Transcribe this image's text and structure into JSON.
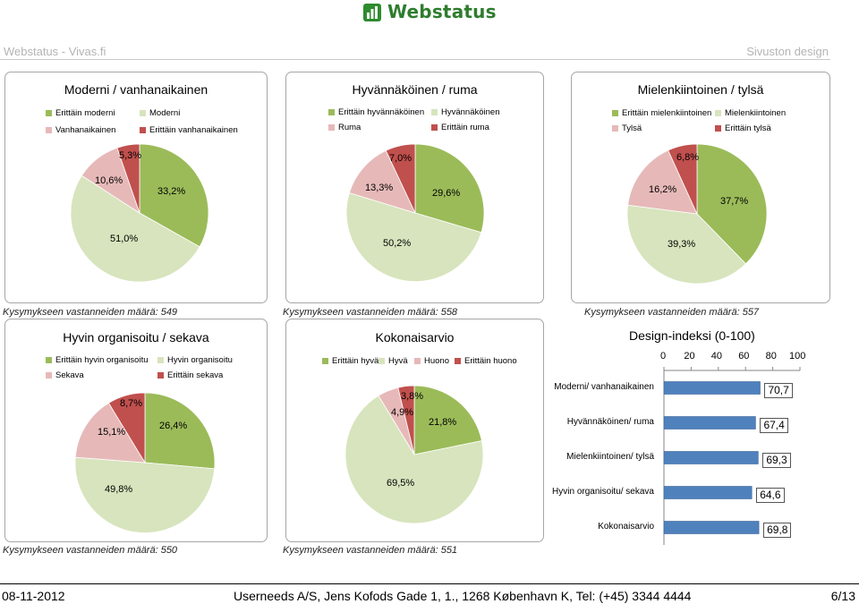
{
  "header": {
    "logo_text": "Webstatus",
    "left": "Webstatus - Vivas.fi",
    "right": "Sivuston design"
  },
  "colors": {
    "dark_green": "#9bbb59",
    "light_green": "#d7e4bd",
    "pink": "#e6b9b8",
    "red": "#c0504d",
    "bar_blue": "#4f81bd"
  },
  "footer": {
    "date": "08-11-2012",
    "company": "Userneeds A/S, Jens Kofods Gade 1, 1., 1268 København K, Tel: (+45) 3344 4444",
    "page": "6/13"
  },
  "chart_data": [
    {
      "type": "pie",
      "title": "Moderni / vanhanaikainen",
      "legend": [
        "Erittäin moderni",
        "Moderni",
        "Vanhanaikainen",
        "Erittäin vanhanaikainen"
      ],
      "values": [
        33.2,
        51.0,
        10.6,
        5.3
      ],
      "labels": [
        "33,2%",
        "51,0%",
        "10,6%",
        "5,3%"
      ],
      "count_text": "Kysymykseen vastanneiden määrä: 549"
    },
    {
      "type": "pie",
      "title": "Hyvännäköinen / ruma",
      "legend": [
        "Erittäin hyvännäköinen",
        "Hyvännäköinen",
        "Ruma",
        "Erittäin ruma"
      ],
      "values": [
        29.6,
        50.2,
        13.3,
        7.0
      ],
      "labels": [
        "29,6%",
        "50,2%",
        "13,3%",
        "7,0%"
      ],
      "count_text": "Kysymykseen vastanneiden määrä: 558"
    },
    {
      "type": "pie",
      "title": "Mielenkiintoinen / tylsä",
      "legend": [
        "Erittäin mielenkiintoinen",
        "Mielenkiintoinen",
        "Tylsä",
        "Erittäin tylsä"
      ],
      "values": [
        37.7,
        39.3,
        16.2,
        6.8
      ],
      "labels": [
        "37,7%",
        "39,3%",
        "16,2%",
        "6,8%"
      ],
      "count_text": "Kysymykseen vastanneiden määrä: 557"
    },
    {
      "type": "pie",
      "title": "Hyvin organisoitu / sekava",
      "legend": [
        "Erittäin hyvin organisoitu",
        "Hyvin organisoitu",
        "Sekava",
        "Erittäin sekava"
      ],
      "values": [
        26.4,
        49.8,
        15.1,
        8.7
      ],
      "labels": [
        "26,4%",
        "49,8%",
        "15,1%",
        "8,7%"
      ],
      "count_text": "Kysymykseen vastanneiden määrä: 550"
    },
    {
      "type": "pie",
      "title": "Kokonaisarvio",
      "legend": [
        "Erittäin hyvä",
        "Hyvä",
        "Huono",
        "Erittäin huono"
      ],
      "values": [
        21.8,
        69.5,
        4.9,
        3.8
      ],
      "labels": [
        "21,8%",
        "69,5%",
        "4,9%",
        "3,8%"
      ],
      "count_text": "Kysymykseen vastanneiden määrä: 551"
    },
    {
      "type": "bar",
      "title": "Design-indeksi (0-100)",
      "categories": [
        "Moderni/ vanhanaikainen",
        "Hyvännäköinen/ ruma",
        "Mielenkiintoinen/ tylsä",
        "Hyvin organisoitu/ sekava",
        "Kokonaisarvio"
      ],
      "values": [
        70.7,
        67.4,
        69.3,
        64.6,
        69.8
      ],
      "value_labels": [
        "70,7",
        "67,4",
        "69,3",
        "64,6",
        "69,8"
      ],
      "xlim": [
        0,
        100
      ],
      "ticks": [
        "0",
        "20",
        "40",
        "60",
        "80",
        "100"
      ]
    }
  ]
}
